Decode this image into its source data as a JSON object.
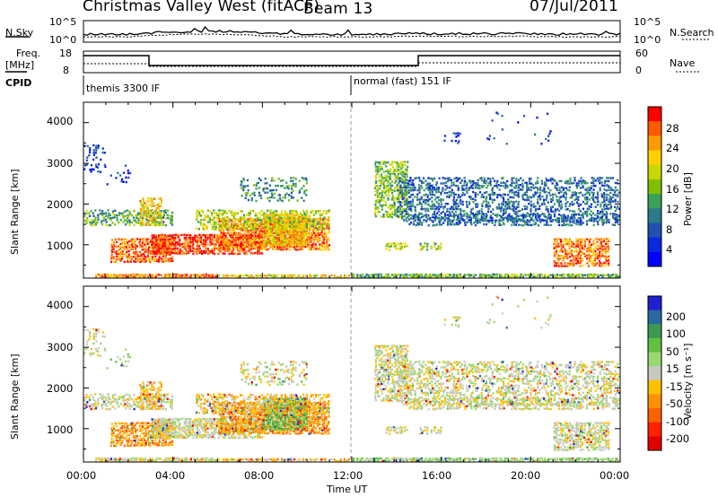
{
  "header": {
    "title": "Christmas Valley West (fitACF)",
    "beam": "Beam 13",
    "date": "07/Jul/2011"
  },
  "strip": {
    "nsky_label": "N.Sky",
    "nsky_ticks": [
      "10^5",
      "10^0"
    ],
    "nsearch_label": "N.Search",
    "nsearch_ticks": [
      "10^5",
      "10^0"
    ],
    "freq_label": "Freq.",
    "freq_unit": "[MHz]",
    "freq_ticks": [
      "18",
      "8"
    ],
    "nave_label": "Nave",
    "nave_ticks": [
      "60",
      "0"
    ],
    "cpid_label": "CPID",
    "cpid_left": "themis 3300 IF",
    "cpid_right": "normal (fast) 151 IF"
  },
  "chart_data": [
    {
      "type": "heatmap",
      "name": "power",
      "ylabel": "Slant Range [km]",
      "yticks": [
        "4000",
        "3000",
        "2000",
        "1000"
      ],
      "ylim": [
        180,
        4500
      ],
      "xlim": [
        0,
        24
      ],
      "colorbar": {
        "label": "Power [dB]",
        "ticks": [
          "28",
          "24",
          "20",
          "16",
          "12",
          "8",
          "4"
        ],
        "colors": [
          "#ff0000",
          "#ff5a00",
          "#ff9a00",
          "#ffd000",
          "#c8d800",
          "#80c000",
          "#3aa05a",
          "#2a7a8a",
          "#2050b0",
          "#0a28e0",
          "#0000ff"
        ]
      }
    },
    {
      "type": "heatmap",
      "name": "velocity",
      "ylabel": "Slant Range [km]",
      "yticks": [
        "4000",
        "3000",
        "2000",
        "1000"
      ],
      "ylim": [
        180,
        4500
      ],
      "xlim": [
        0,
        24
      ],
      "colorbar": {
        "label": "Velocity [m s⁻¹]",
        "ticks": [
          "200",
          "100",
          "50",
          "15",
          "-15",
          "-50",
          "-100",
          "-200"
        ],
        "colors": [
          "#2020d0",
          "#2a6aa0",
          "#3c9a50",
          "#60c040",
          "#9ad870",
          "#c8c8c0",
          "#ffc000",
          "#ff9000",
          "#ff6000",
          "#ff2000",
          "#e00000"
        ]
      }
    }
  ],
  "xaxis": {
    "ticks": [
      "00:00",
      "04:00",
      "08:00",
      "12:00",
      "16:00",
      "20:00",
      "00:00"
    ],
    "label": "Time UT"
  }
}
